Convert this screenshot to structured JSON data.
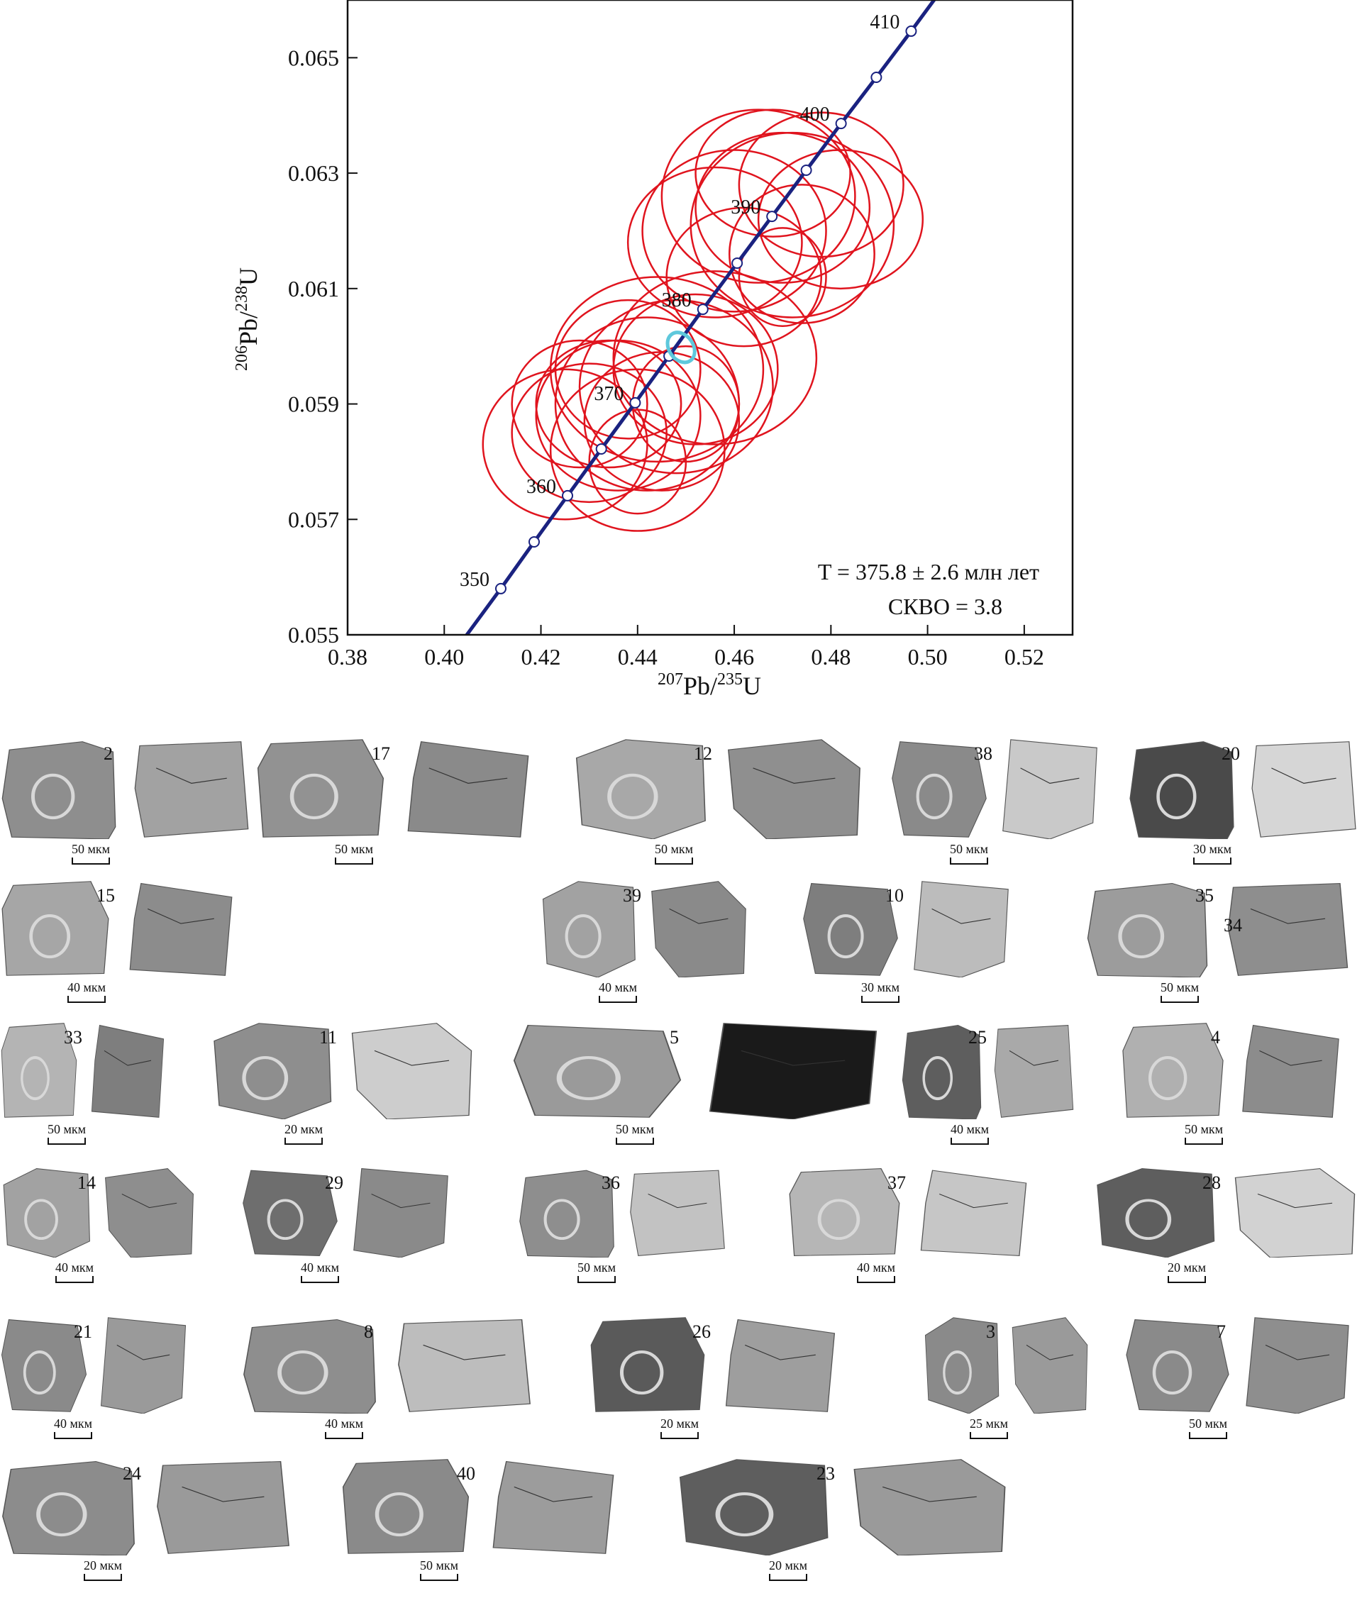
{
  "chart_data": {
    "type": "concordia",
    "xlabel": "207Pb/235U",
    "ylabel": "206Pb/238U",
    "xlim": [
      0.38,
      0.53
    ],
    "ylim": [
      0.055,
      0.066
    ],
    "x_ticks": [
      "0.38",
      "0.40",
      "0.42",
      "0.44",
      "0.46",
      "0.48",
      "0.50",
      "0.52"
    ],
    "y_ticks": [
      "0.055",
      "0.057",
      "0.059",
      "0.061",
      "0.063",
      "0.065"
    ],
    "concordia_ages": [
      {
        "age": 350,
        "x": 0.4117,
        "y": 0.0558,
        "label": "350"
      },
      {
        "age": 355,
        "x": 0.4186,
        "y": 0.05661,
        "label": ""
      },
      {
        "age": 360,
        "x": 0.4255,
        "y": 0.05741,
        "label": "360"
      },
      {
        "age": 365,
        "x": 0.4325,
        "y": 0.05822,
        "label": ""
      },
      {
        "age": 370,
        "x": 0.4395,
        "y": 0.05902,
        "label": "370"
      },
      {
        "age": 375,
        "x": 0.4465,
        "y": 0.05983,
        "label": ""
      },
      {
        "age": 380,
        "x": 0.4535,
        "y": 0.06064,
        "label": "380"
      },
      {
        "age": 385,
        "x": 0.4606,
        "y": 0.06144,
        "label": ""
      },
      {
        "age": 390,
        "x": 0.4678,
        "y": 0.06225,
        "label": "390"
      },
      {
        "age": 395,
        "x": 0.4749,
        "y": 0.06305,
        "label": ""
      },
      {
        "age": 400,
        "x": 0.4821,
        "y": 0.06386,
        "label": "400"
      },
      {
        "age": 405,
        "x": 0.4894,
        "y": 0.06466,
        "label": ""
      },
      {
        "age": 410,
        "x": 0.4966,
        "y": 0.06546,
        "label": "410"
      }
    ],
    "ellipses": [
      {
        "x": 0.47,
        "y": 0.0624,
        "rx": 0.018,
        "ry": 0.0013
      },
      {
        "x": 0.465,
        "y": 0.0626,
        "rx": 0.02,
        "ry": 0.0015
      },
      {
        "x": 0.478,
        "y": 0.0628,
        "rx": 0.017,
        "ry": 0.00125
      },
      {
        "x": 0.46,
        "y": 0.062,
        "rx": 0.019,
        "ry": 0.0014
      },
      {
        "x": 0.472,
        "y": 0.0621,
        "rx": 0.021,
        "ry": 0.0016
      },
      {
        "x": 0.482,
        "y": 0.0622,
        "rx": 0.017,
        "ry": 0.0012
      },
      {
        "x": 0.468,
        "y": 0.063,
        "rx": 0.016,
        "ry": 0.0011
      },
      {
        "x": 0.456,
        "y": 0.0618,
        "rx": 0.018,
        "ry": 0.0013
      },
      {
        "x": 0.474,
        "y": 0.0616,
        "rx": 0.015,
        "ry": 0.0012
      },
      {
        "x": 0.462,
        "y": 0.0612,
        "rx": 0.016,
        "ry": 0.0012
      },
      {
        "x": 0.47,
        "y": 0.0612,
        "rx": 0.009,
        "ry": 0.00085
      },
      {
        "x": 0.436,
        "y": 0.0588,
        "rx": 0.017,
        "ry": 0.0013
      },
      {
        "x": 0.442,
        "y": 0.059,
        "rx": 0.019,
        "ry": 0.0015
      },
      {
        "x": 0.43,
        "y": 0.0585,
        "rx": 0.016,
        "ry": 0.0012
      },
      {
        "x": 0.448,
        "y": 0.0593,
        "rx": 0.02,
        "ry": 0.0015
      },
      {
        "x": 0.425,
        "y": 0.0583,
        "rx": 0.017,
        "ry": 0.0013
      },
      {
        "x": 0.44,
        "y": 0.0582,
        "rx": 0.018,
        "ry": 0.0014
      },
      {
        "x": 0.452,
        "y": 0.0596,
        "rx": 0.017,
        "ry": 0.0013
      },
      {
        "x": 0.434,
        "y": 0.059,
        "rx": 0.015,
        "ry": 0.0011
      },
      {
        "x": 0.445,
        "y": 0.0587,
        "rx": 0.016,
        "ry": 0.0012
      },
      {
        "x": 0.438,
        "y": 0.0596,
        "rx": 0.015,
        "ry": 0.0012
      },
      {
        "x": 0.428,
        "y": 0.059,
        "rx": 0.014,
        "ry": 0.0011
      },
      {
        "x": 0.44,
        "y": 0.058,
        "rx": 0.01,
        "ry": 0.0009
      },
      {
        "x": 0.45,
        "y": 0.059,
        "rx": 0.011,
        "ry": 0.001
      },
      {
        "x": 0.456,
        "y": 0.0598,
        "rx": 0.021,
        "ry": 0.0015
      },
      {
        "x": 0.444,
        "y": 0.0596,
        "rx": 0.022,
        "ry": 0.0016
      }
    ],
    "mean_ellipse": {
      "x": 0.449,
      "y": 0.05998,
      "rx": 0.0025,
      "ry": 0.00028
    },
    "colors": {
      "ellipse": "#e0141e",
      "concordia": "#1a2280",
      "mean": "#5ec8dc",
      "frame": "#111111"
    },
    "annotation_line1": "T = 375.8 ± 2.6 млн лет",
    "annotation_line2": "СКВО = 3.8"
  },
  "grains": [
    {
      "label": "2",
      "scale": "50 мкм",
      "leftTone": "#8e8e8e",
      "rightTone": "#a2a2a2"
    },
    {
      "label": "17",
      "scale": "50 мкм",
      "leftTone": "#929292",
      "rightTone": "#8a8a8a"
    },
    {
      "label": "12",
      "scale": "50 мкм",
      "leftTone": "#a8a8a8",
      "rightTone": "#8f8f8f"
    },
    {
      "label": "38",
      "scale": "50 мкм",
      "leftTone": "#8a8a8a",
      "rightTone": "#c9c9c9"
    },
    {
      "label": "20",
      "scale": "30 мкм",
      "leftTone": "#4a4a4a",
      "rightTone": "#d6d6d6"
    },
    {
      "label": "15",
      "scale": "40 мкм",
      "leftTone": "#a6a6a6",
      "rightTone": "#8c8c8c"
    },
    {
      "label": "39",
      "scale": "40 мкм",
      "leftTone": "#a2a2a2",
      "rightTone": "#8a8a8a"
    },
    {
      "label": "10",
      "scale": "30 мкм",
      "leftTone": "#7e7e7e",
      "rightTone": "#bcbcbc"
    },
    {
      "label": "35",
      "scale": "50 мкм",
      "leftTone": "#9c9c9c",
      "rightTone": "#8e8e8e",
      "extraLabel": "34"
    },
    {
      "label": "33",
      "scale": "50 мкм",
      "leftTone": "#b4b4b4",
      "rightTone": "#7e7e7e"
    },
    {
      "label": "11",
      "scale": "20 мкм",
      "leftTone": "#8e8e8e",
      "rightTone": "#cdcdcd"
    },
    {
      "label": "5",
      "scale": "50 мкм",
      "leftTone": "#9a9a9a",
      "rightTone": "#1a1a1a"
    },
    {
      "label": "25",
      "scale": "40 мкм",
      "leftTone": "#5e5e5e",
      "rightTone": "#a9a9a9"
    },
    {
      "label": "4",
      "scale": "50 мкм",
      "leftTone": "#b0b0b0",
      "rightTone": "#8c8c8c"
    },
    {
      "label": "14",
      "scale": "40 мкм",
      "leftTone": "#a2a2a2",
      "rightTone": "#8e8e8e"
    },
    {
      "label": "29",
      "scale": "40 мкм",
      "leftTone": "#6e6e6e",
      "rightTone": "#8a8a8a"
    },
    {
      "label": "36",
      "scale": "50 мкм",
      "leftTone": "#8e8e8e",
      "rightTone": "#c2c2c2"
    },
    {
      "label": "37",
      "scale": "40 мкм",
      "leftTone": "#b6b6b6",
      "rightTone": "#c6c6c6"
    },
    {
      "label": "28",
      "scale": "20 мкм",
      "leftTone": "#5e5e5e",
      "rightTone": "#d2d2d2"
    },
    {
      "label": "21",
      "scale": "40 мкм",
      "leftTone": "#8a8a8a",
      "rightTone": "#9a9a9a"
    },
    {
      "label": "8",
      "scale": "40 мкм",
      "leftTone": "#8e8e8e",
      "rightTone": "#bdbdbd"
    },
    {
      "label": "26",
      "scale": "20 мкм",
      "leftTone": "#5a5a5a",
      "rightTone": "#9e9e9e"
    },
    {
      "label": "3",
      "scale": "25 мкм",
      "leftTone": "#8a8a8a",
      "rightTone": "#9a9a9a"
    },
    {
      "label": "7",
      "scale": "50 мкм",
      "leftTone": "#8a8a8a",
      "rightTone": "#8e8e8e"
    },
    {
      "label": "24",
      "scale": "20 мкм",
      "leftTone": "#8c8c8c",
      "rightTone": "#9a9a9a"
    },
    {
      "label": "40",
      "scale": "50 мкм",
      "leftTone": "#8a8a8a",
      "rightTone": "#9c9c9c"
    },
    {
      "label": "23",
      "scale": "20 мкм",
      "leftTone": "#5e5e5e",
      "rightTone": "#9a9a9a"
    }
  ]
}
